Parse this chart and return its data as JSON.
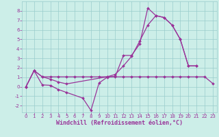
{
  "background_color": "#cceee8",
  "grid_color": "#99cccc",
  "line_color": "#993399",
  "markersize": 2.0,
  "linewidth": 0.9,
  "xlabel": "Windchill (Refroidissement éolien,°C)",
  "xlabel_fontsize": 6.0,
  "xlabel_color": "#993399",
  "xlim": [
    -0.5,
    23.5
  ],
  "ylim": [
    -2.7,
    9.0
  ],
  "yticks": [
    -2,
    -1,
    0,
    1,
    2,
    3,
    4,
    5,
    6,
    7,
    8
  ],
  "xticks": [
    0,
    1,
    2,
    3,
    4,
    5,
    6,
    7,
    8,
    9,
    10,
    11,
    12,
    13,
    14,
    15,
    16,
    17,
    18,
    19,
    20,
    21,
    22,
    23
  ],
  "tick_fontsize": 5.0,
  "s1_x": [
    0,
    1,
    2,
    3,
    4,
    5,
    7,
    8,
    9,
    10,
    11,
    12,
    13,
    14,
    15,
    16,
    17,
    18,
    19,
    20,
    21
  ],
  "s1_y": [
    0,
    1.7,
    0.2,
    0.15,
    -0.3,
    -0.6,
    -1.2,
    -2.5,
    0.4,
    1.0,
    1.1,
    3.3,
    3.3,
    4.5,
    8.3,
    7.5,
    7.3,
    6.5,
    5.0,
    2.2,
    2.2
  ],
  "s2_x": [
    0,
    1,
    2,
    3,
    4,
    5,
    6,
    7,
    8,
    9,
    10,
    11,
    12,
    13,
    14,
    15,
    16,
    17,
    18,
    19,
    20,
    21,
    22,
    23
  ],
  "s2_y": [
    0,
    1.7,
    1.05,
    1.05,
    1.05,
    1.05,
    1.05,
    1.05,
    1.05,
    1.05,
    1.05,
    1.05,
    1.05,
    1.05,
    1.05,
    1.05,
    1.05,
    1.05,
    1.05,
    1.05,
    1.05,
    1.05,
    1.05,
    0.35
  ],
  "s3_x": [
    0,
    1,
    2,
    3,
    4,
    5,
    10,
    11,
    12,
    13,
    14,
    15,
    16,
    17,
    18,
    19,
    20,
    21
  ],
  "s3_y": [
    0,
    1.7,
    1.05,
    0.8,
    0.5,
    0.3,
    1.05,
    1.3,
    2.2,
    3.2,
    4.8,
    6.5,
    7.5,
    7.3,
    6.5,
    5.0,
    2.2,
    2.2
  ]
}
